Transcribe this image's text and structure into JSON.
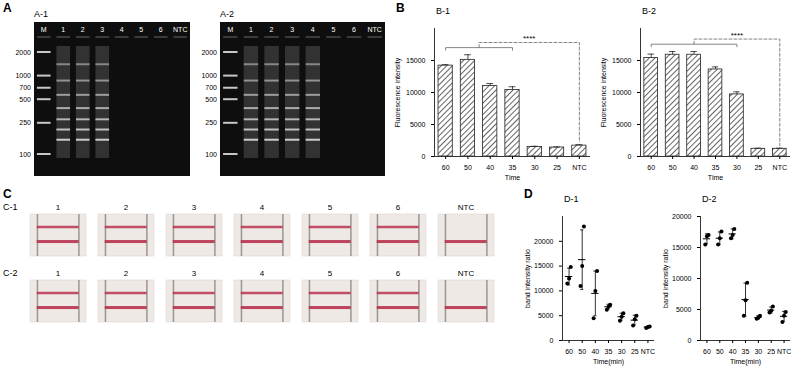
{
  "panel_letters": [
    "A",
    "B",
    "C",
    "D"
  ],
  "gels": [
    {
      "title": "A-1",
      "lanes": [
        "M",
        "1",
        "2",
        "3",
        "4",
        "5",
        "6",
        "NTC"
      ],
      "ladder_lane": "M",
      "ladder_bp": [
        2000,
        1000,
        700,
        500,
        250,
        100
      ],
      "positive_lanes": [
        "1",
        "2",
        "3"
      ]
    },
    {
      "title": "A-2",
      "lanes": [
        "M",
        "1",
        "2",
        "3",
        "4",
        "5",
        "6",
        "NTC"
      ],
      "ladder_lane": "M",
      "ladder_bp": [
        2000,
        1000,
        700,
        500,
        250,
        100
      ],
      "positive_lanes": [
        "1",
        "2",
        "3",
        "4"
      ]
    }
  ],
  "chart_data": [
    {
      "title": "B-1",
      "type": "bar",
      "categories": [
        "60",
        "50",
        "40",
        "35",
        "30",
        "25",
        "NTC"
      ],
      "values": [
        14200,
        15100,
        11000,
        10400,
        1500,
        1400,
        1700
      ],
      "errors": [
        150,
        800,
        400,
        500,
        100,
        100,
        150
      ],
      "color": "#222222",
      "x_label": "Time",
      "y_label": "Fluorescence intensity",
      "ylim": [
        0,
        20000
      ],
      "yticks": [
        0,
        5000,
        10000,
        15000
      ],
      "comparison": {
        "group": [
          "60",
          "50",
          "40",
          "35"
        ],
        "versus": "NTC",
        "label": "****"
      }
    },
    {
      "title": "B-2",
      "type": "bar",
      "categories": [
        "60",
        "50",
        "40",
        "35",
        "30",
        "25",
        "NTC"
      ],
      "values": [
        15400,
        15900,
        15900,
        13600,
        9700,
        1200,
        1200
      ],
      "errors": [
        600,
        500,
        500,
        400,
        400,
        100,
        100
      ],
      "color": "#222222",
      "x_label": "Time",
      "y_label": "Fluorescence intensity",
      "ylim": [
        0,
        20000
      ],
      "yticks": [
        0,
        5000,
        10000,
        15000
      ],
      "comparison": {
        "group": [
          "60",
          "50",
          "40",
          "35",
          "30"
        ],
        "versus": "NTC",
        "label": "****"
      }
    },
    {
      "title": "D-1",
      "type": "scatter",
      "categories": [
        "60",
        "50",
        "40",
        "35",
        "30",
        "25",
        "NTC"
      ],
      "values": [
        [
          11500,
          12500,
          14800
        ],
        [
          11000,
          15000,
          23000
        ],
        [
          4500,
          10000,
          14000
        ],
        [
          6200,
          6800,
          7200
        ],
        [
          4000,
          4800,
          5500
        ],
        [
          3000,
          4300,
          5000
        ],
        [
          2500,
          2700,
          2800
        ]
      ],
      "mean": [
        12900,
        16300,
        9500,
        6800,
        4800,
        4100,
        2700
      ],
      "sd": [
        1700,
        6000,
        4500,
        500,
        700,
        1000,
        150
      ],
      "color": "#000000",
      "x_label": "Time(min)",
      "y_label": "band intensity ratio",
      "ylim": [
        0,
        25000
      ],
      "yticks": [
        0,
        5000,
        10000,
        15000,
        20000
      ]
    },
    {
      "title": "D-2",
      "type": "scatter",
      "categories": [
        "60",
        "50",
        "40",
        "35",
        "30",
        "25",
        "NTC"
      ],
      "values": [
        [
          15500,
          16800,
          17000
        ],
        [
          15500,
          16500,
          17600
        ],
        [
          16500,
          17000,
          18000
        ],
        [
          4000,
          6500,
          9300
        ],
        [
          3500,
          3700,
          4000
        ],
        [
          4500,
          4800,
          5500
        ],
        [
          3000,
          4000,
          4600
        ]
      ],
      "mean": [
        16400,
        16500,
        17200,
        6600,
        3700,
        4900,
        3900
      ],
      "sd": [
        800,
        1000,
        800,
        2650,
        300,
        500,
        800
      ],
      "color": "#000000",
      "x_label": "Time(min)",
      "y_label": "band intensity ratio",
      "ylim": [
        0,
        20000
      ],
      "yticks": [
        0,
        5000,
        10000,
        15000,
        20000
      ]
    }
  ],
  "strips": [
    {
      "title": "C-1",
      "labels": [
        "1",
        "2",
        "3",
        "4",
        "5",
        "6",
        "NTC"
      ],
      "test_line": [
        true,
        true,
        true,
        true,
        true,
        true,
        false
      ]
    },
    {
      "title": "C-2",
      "labels": [
        "1",
        "2",
        "3",
        "4",
        "5",
        "6",
        "NTC"
      ],
      "test_line": [
        true,
        true,
        true,
        true,
        true,
        true,
        false
      ]
    }
  ]
}
